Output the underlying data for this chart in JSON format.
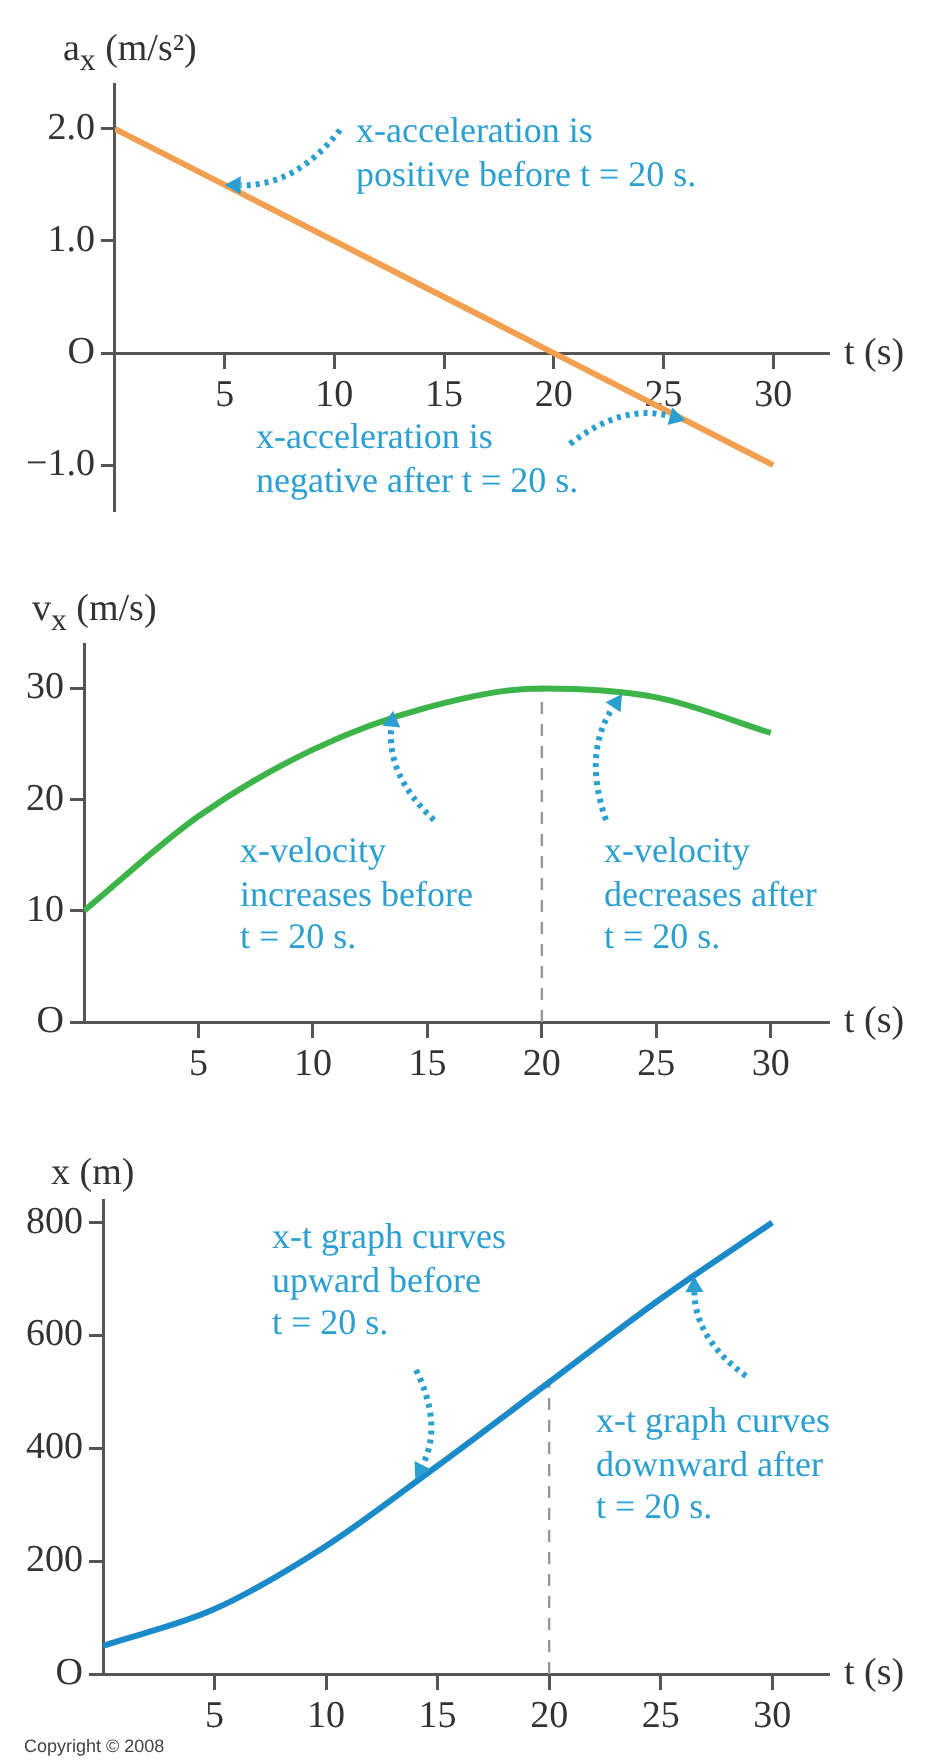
{
  "chart_data": [
    {
      "type": "line",
      "ylabel": "a$_{x}$ (m/s²)",
      "xlabel": "t (s)",
      "x": [
        0,
        5,
        10,
        15,
        20,
        25,
        30
      ],
      "series": [
        {
          "color": "#f0a050",
          "values": [
            2.0,
            1.5,
            1.0,
            0.5,
            0.0,
            -0.5,
            -1.0
          ]
        }
      ],
      "xlim": [
        0,
        32.5
      ],
      "xticks": [
        5,
        10,
        15,
        20,
        25,
        30
      ],
      "ylim": [
        -1.4,
        2.4
      ],
      "yticks": [
        {
          "value": -1,
          "label": "−1.0"
        },
        {
          "value": 0,
          "label": "O"
        },
        {
          "value": 1,
          "label": "1.0"
        },
        {
          "value": 2,
          "label": "2.0"
        }
      ],
      "annotations": [
        {
          "text": "x-acceleration is\npositive before t = 20 s.",
          "x": 5,
          "y": 1.5
        },
        {
          "text": "x-acceleration is\nnegative after t = 20 s.",
          "x": 26,
          "y": -0.6
        }
      ]
    },
    {
      "type": "line",
      "ylabel": "v$_{x}$ (m/s)",
      "xlabel": "t (s)",
      "x": [
        0,
        5,
        10,
        15,
        20,
        25,
        30
      ],
      "series": [
        {
          "color": "#3cb44a",
          "values": [
            10,
            18.5,
            24.5,
            28.3,
            30,
            29.2,
            26
          ]
        }
      ],
      "xlim": [
        0,
        32.5
      ],
      "xticks": [
        5,
        10,
        15,
        20,
        25,
        30
      ],
      "ylim": [
        0,
        34
      ],
      "yticks": [
        {
          "value": 0,
          "label": "O"
        },
        10,
        20,
        30
      ],
      "ref_lines": [
        {
          "axis": "x",
          "value": 20,
          "color": "#999999",
          "line_style": "dashed"
        }
      ],
      "annotations": [
        {
          "text": "x-velocity\nincreases before\nt = 20 s.",
          "x": 13.5,
          "y": 28
        },
        {
          "text": "x-velocity\ndecreases after\nt = 20 s.",
          "x": 23.5,
          "y": 29.5
        }
      ]
    },
    {
      "type": "line",
      "ylabel": "x (m)",
      "xlabel": "t (s)",
      "x": [
        0,
        5,
        10,
        15,
        20,
        25,
        30
      ],
      "series": [
        {
          "color": "#1a8ac8",
          "values": [
            50,
            115,
            227,
            369,
            517,
            665,
            800
          ]
        }
      ],
      "xlim": [
        0,
        32.5
      ],
      "xticks": [
        5,
        10,
        15,
        20,
        25,
        30
      ],
      "ylim": [
        0,
        840
      ],
      "yticks": [
        {
          "value": 0,
          "label": "O"
        },
        200,
        400,
        600,
        800
      ],
      "ref_lines": [
        {
          "axis": "x",
          "value": 20,
          "color": "#999999",
          "line_style": "dashed"
        }
      ],
      "annotations": [
        {
          "text": "x-t graph curves\nupward before\nt = 20 s.",
          "x": 14,
          "y": 345
        },
        {
          "text": "x-t graph curves\ndownward after\nt = 20 s.",
          "x": 26.5,
          "y": 705
        },
        "Copyright © 2008"
      ]
    }
  ]
}
